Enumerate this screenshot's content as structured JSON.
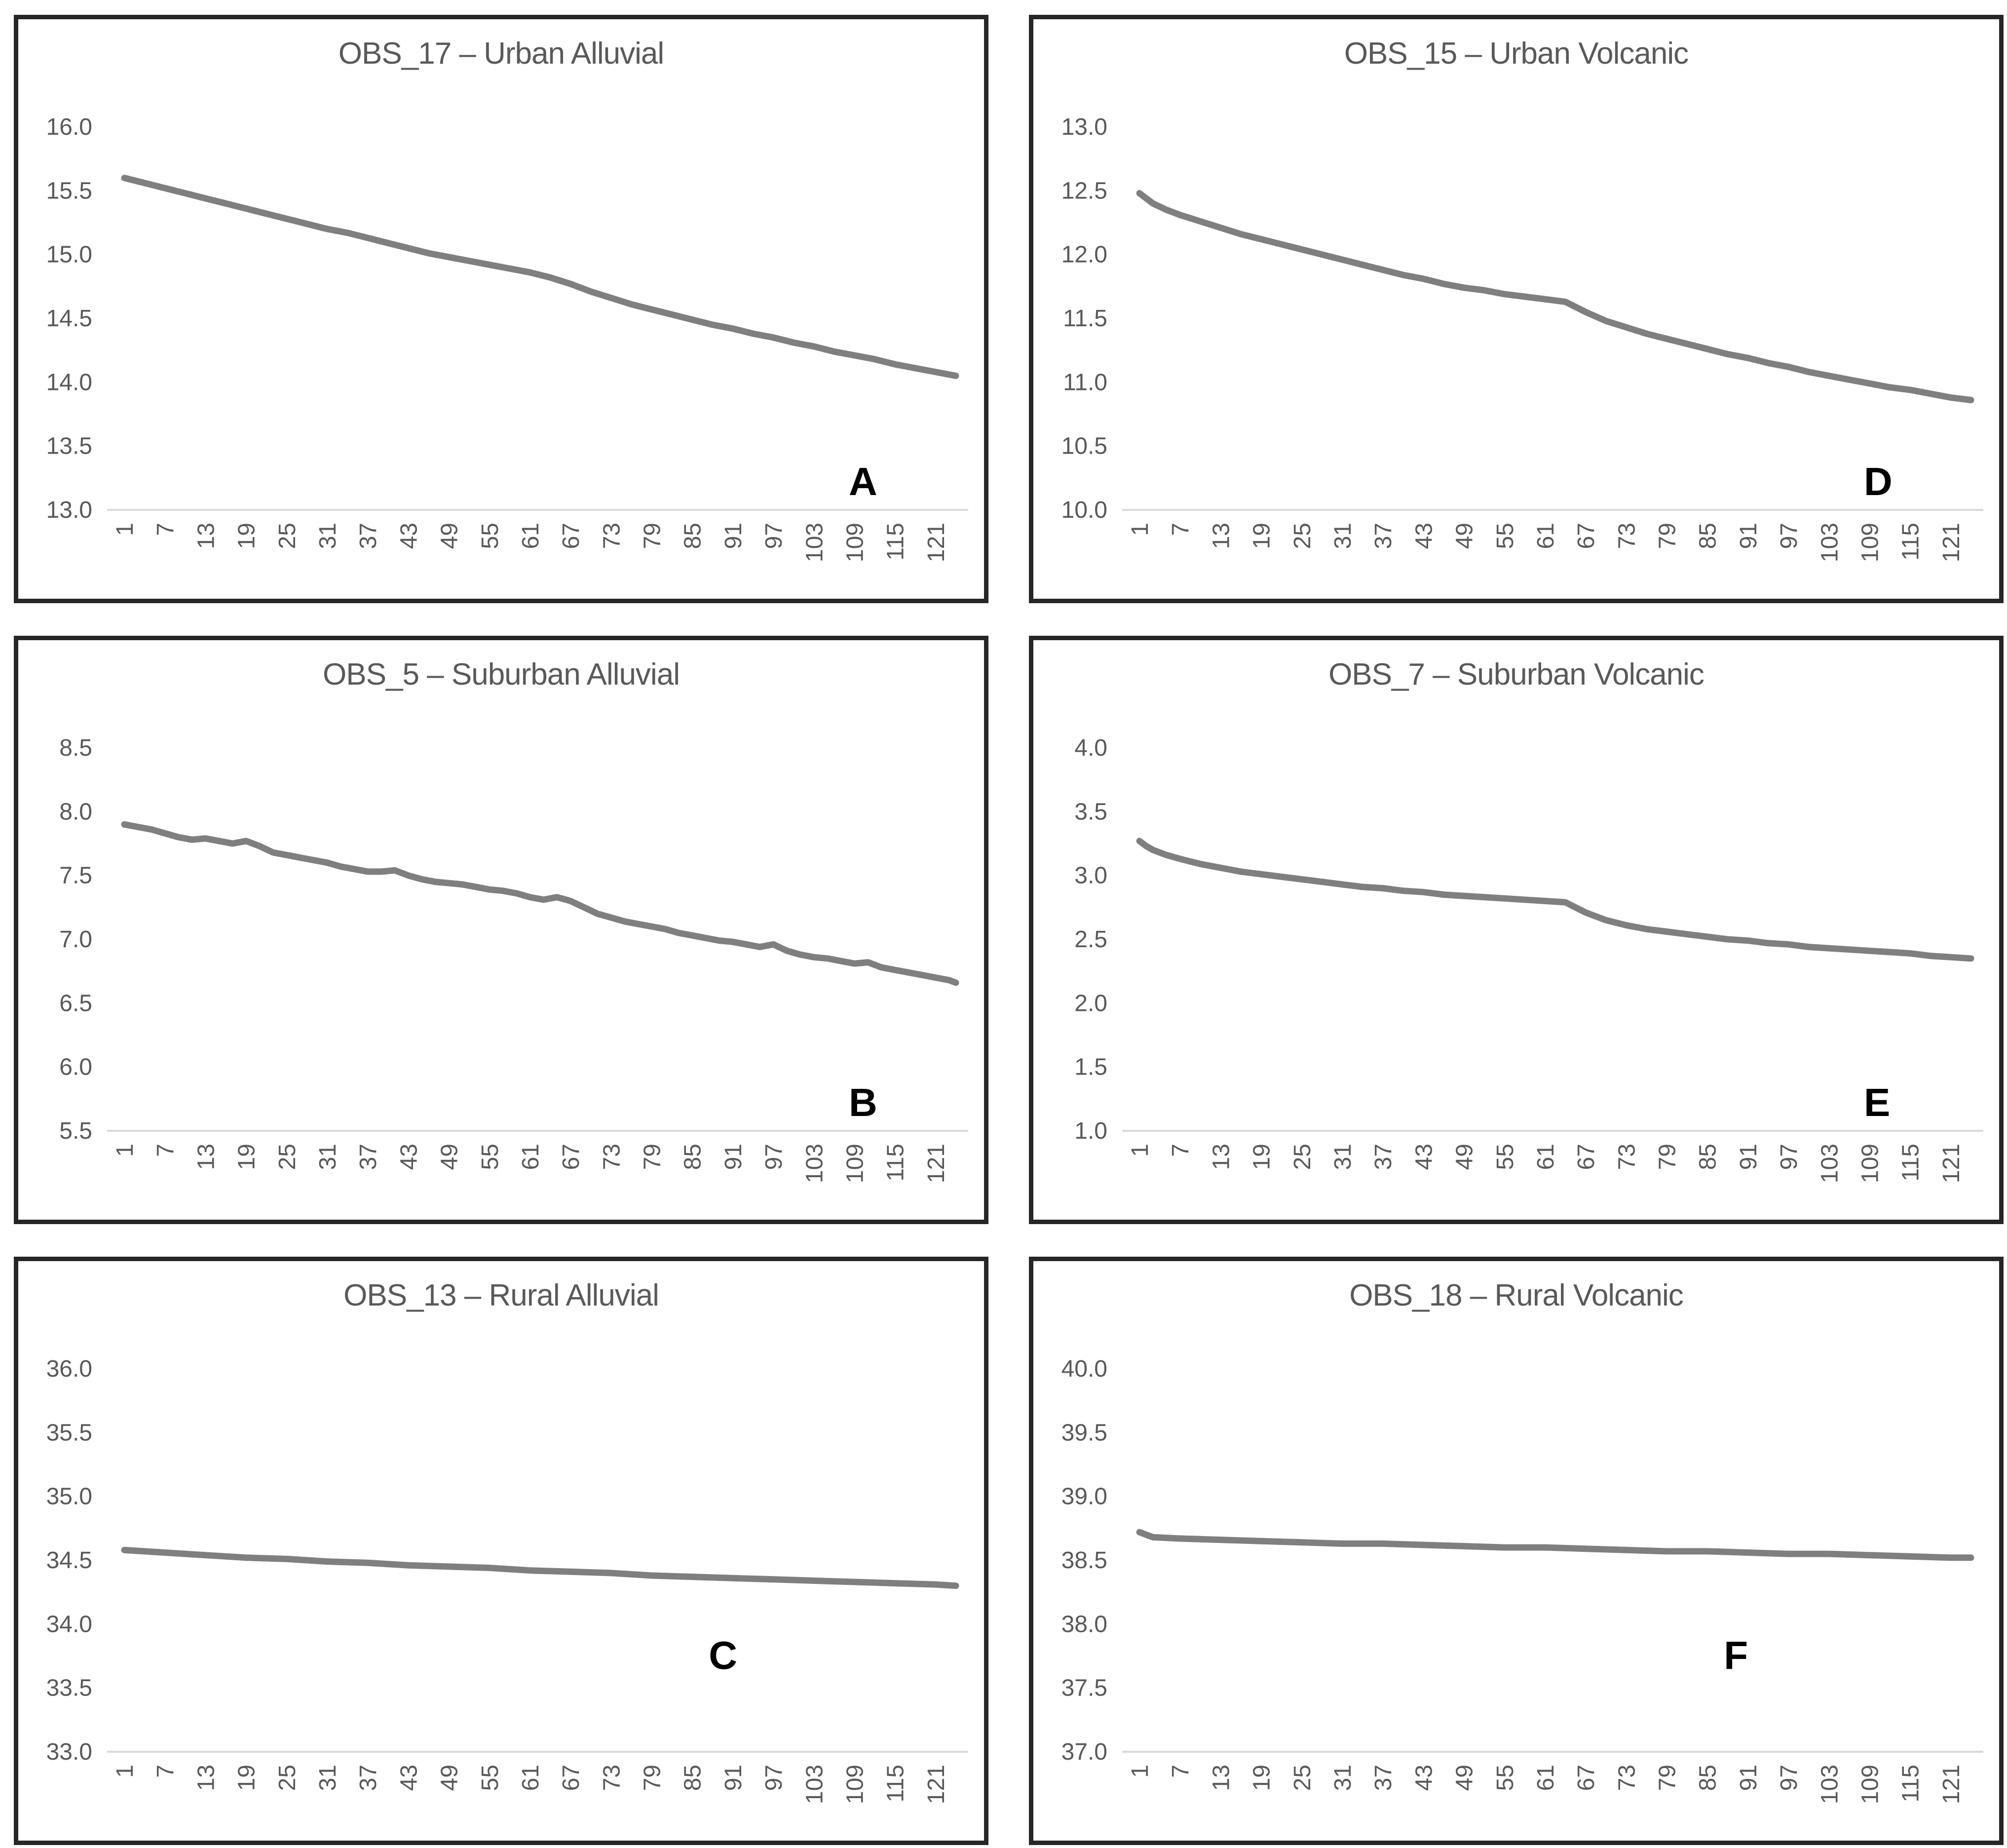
{
  "page": {
    "background": "#ffffff"
  },
  "colors": {
    "title_text": "#595959",
    "tick_text": "#595959",
    "series_line": "#7f7f7f",
    "axis_line": "#d9d9d9",
    "panel_border": "#262626",
    "letter_text": "#000000"
  },
  "x_axis": {
    "tick_labels": [
      "1",
      "7",
      "13",
      "19",
      "25",
      "31",
      "37",
      "43",
      "49",
      "55",
      "61",
      "67",
      "73",
      "79",
      "85",
      "91",
      "97",
      "103",
      "109",
      "115",
      "121"
    ],
    "tick_interval": 6,
    "n_points": 124,
    "label_rotation_deg": -90
  },
  "chart_data": [
    {
      "type": "line",
      "title": "OBS_17 – Urban Alluvial",
      "letter": "A",
      "ylim": [
        13.0,
        16.0
      ],
      "yticks": [
        "16.0",
        "15.5",
        "15.0",
        "14.5",
        "14.0",
        "13.5",
        "13.0"
      ],
      "grid": "off",
      "legend": "none",
      "points": [
        [
          1,
          15.6
        ],
        [
          4,
          15.56
        ],
        [
          7,
          15.52
        ],
        [
          10,
          15.48
        ],
        [
          13,
          15.44
        ],
        [
          16,
          15.4
        ],
        [
          19,
          15.36
        ],
        [
          22,
          15.32
        ],
        [
          25,
          15.28
        ],
        [
          28,
          15.24
        ],
        [
          31,
          15.2
        ],
        [
          34,
          15.17
        ],
        [
          37,
          15.13
        ],
        [
          40,
          15.09
        ],
        [
          43,
          15.05
        ],
        [
          46,
          15.01
        ],
        [
          49,
          14.98
        ],
        [
          52,
          14.95
        ],
        [
          55,
          14.92
        ],
        [
          58,
          14.89
        ],
        [
          61,
          14.86
        ],
        [
          64,
          14.82
        ],
        [
          67,
          14.77
        ],
        [
          70,
          14.71
        ],
        [
          73,
          14.66
        ],
        [
          76,
          14.61
        ],
        [
          79,
          14.57
        ],
        [
          82,
          14.53
        ],
        [
          85,
          14.49
        ],
        [
          88,
          14.45
        ],
        [
          91,
          14.42
        ],
        [
          94,
          14.38
        ],
        [
          97,
          14.35
        ],
        [
          100,
          14.31
        ],
        [
          103,
          14.28
        ],
        [
          106,
          14.24
        ],
        [
          109,
          14.21
        ],
        [
          112,
          14.18
        ],
        [
          115,
          14.14
        ],
        [
          118,
          14.11
        ],
        [
          121,
          14.08
        ],
        [
          124,
          14.05
        ]
      ]
    },
    {
      "type": "line",
      "title": "OBS_15 – Urban Volcanic",
      "letter": "D",
      "ylim": [
        10.0,
        13.0
      ],
      "yticks": [
        "13.0",
        "12.5",
        "12.0",
        "11.5",
        "11.0",
        "10.5",
        "10.0"
      ],
      "grid": "off",
      "legend": "none",
      "points": [
        [
          1,
          12.48
        ],
        [
          3,
          12.4
        ],
        [
          5,
          12.35
        ],
        [
          7,
          12.31
        ],
        [
          10,
          12.26
        ],
        [
          13,
          12.21
        ],
        [
          16,
          12.16
        ],
        [
          19,
          12.12
        ],
        [
          22,
          12.08
        ],
        [
          25,
          12.04
        ],
        [
          28,
          12.0
        ],
        [
          31,
          11.96
        ],
        [
          34,
          11.92
        ],
        [
          37,
          11.88
        ],
        [
          40,
          11.84
        ],
        [
          43,
          11.81
        ],
        [
          46,
          11.77
        ],
        [
          49,
          11.74
        ],
        [
          52,
          11.72
        ],
        [
          55,
          11.69
        ],
        [
          58,
          11.67
        ],
        [
          61,
          11.65
        ],
        [
          64,
          11.63
        ],
        [
          67,
          11.55
        ],
        [
          70,
          11.48
        ],
        [
          73,
          11.43
        ],
        [
          76,
          11.38
        ],
        [
          79,
          11.34
        ],
        [
          82,
          11.3
        ],
        [
          85,
          11.26
        ],
        [
          88,
          11.22
        ],
        [
          91,
          11.19
        ],
        [
          94,
          11.15
        ],
        [
          97,
          11.12
        ],
        [
          100,
          11.08
        ],
        [
          103,
          11.05
        ],
        [
          106,
          11.02
        ],
        [
          109,
          10.99
        ],
        [
          112,
          10.96
        ],
        [
          115,
          10.94
        ],
        [
          118,
          10.91
        ],
        [
          121,
          10.88
        ],
        [
          124,
          10.86
        ]
      ]
    },
    {
      "type": "line",
      "title": "OBS_5 – Suburban Alluvial",
      "letter": "B",
      "ylim": [
        5.5,
        8.5
      ],
      "yticks": [
        "8.5",
        "8.0",
        "7.5",
        "7.0",
        "6.5",
        "6.0",
        "5.5"
      ],
      "grid": "off",
      "legend": "none",
      "points": [
        [
          1,
          7.9
        ],
        [
          3,
          7.88
        ],
        [
          5,
          7.86
        ],
        [
          7,
          7.83
        ],
        [
          9,
          7.8
        ],
        [
          11,
          7.78
        ],
        [
          13,
          7.79
        ],
        [
          15,
          7.77
        ],
        [
          17,
          7.75
        ],
        [
          19,
          7.77
        ],
        [
          21,
          7.73
        ],
        [
          23,
          7.68
        ],
        [
          25,
          7.66
        ],
        [
          27,
          7.64
        ],
        [
          29,
          7.62
        ],
        [
          31,
          7.6
        ],
        [
          33,
          7.57
        ],
        [
          35,
          7.55
        ],
        [
          37,
          7.53
        ],
        [
          39,
          7.53
        ],
        [
          41,
          7.54
        ],
        [
          43,
          7.5
        ],
        [
          45,
          7.47
        ],
        [
          47,
          7.45
        ],
        [
          49,
          7.44
        ],
        [
          51,
          7.43
        ],
        [
          53,
          7.41
        ],
        [
          55,
          7.39
        ],
        [
          57,
          7.38
        ],
        [
          59,
          7.36
        ],
        [
          61,
          7.33
        ],
        [
          63,
          7.31
        ],
        [
          65,
          7.33
        ],
        [
          67,
          7.3
        ],
        [
          69,
          7.25
        ],
        [
          71,
          7.2
        ],
        [
          73,
          7.17
        ],
        [
          75,
          7.14
        ],
        [
          77,
          7.12
        ],
        [
          79,
          7.1
        ],
        [
          81,
          7.08
        ],
        [
          83,
          7.05
        ],
        [
          85,
          7.03
        ],
        [
          87,
          7.01
        ],
        [
          89,
          6.99
        ],
        [
          91,
          6.98
        ],
        [
          93,
          6.96
        ],
        [
          95,
          6.94
        ],
        [
          97,
          6.96
        ],
        [
          99,
          6.91
        ],
        [
          101,
          6.88
        ],
        [
          103,
          6.86
        ],
        [
          105,
          6.85
        ],
        [
          107,
          6.83
        ],
        [
          109,
          6.81
        ],
        [
          111,
          6.82
        ],
        [
          113,
          6.78
        ],
        [
          115,
          6.76
        ],
        [
          117,
          6.74
        ],
        [
          119,
          6.72
        ],
        [
          121,
          6.7
        ],
        [
          123,
          6.68
        ],
        [
          124,
          6.66
        ]
      ]
    },
    {
      "type": "line",
      "title": "OBS_7 – Suburban Volcanic",
      "letter": "E",
      "ylim": [
        1.0,
        4.0
      ],
      "yticks": [
        "4.0",
        "3.5",
        "3.0",
        "2.5",
        "2.0",
        "1.5",
        "1.0"
      ],
      "grid": "off",
      "legend": "none",
      "points": [
        [
          1,
          3.27
        ],
        [
          2,
          3.23
        ],
        [
          3,
          3.2
        ],
        [
          5,
          3.16
        ],
        [
          7,
          3.13
        ],
        [
          10,
          3.09
        ],
        [
          13,
          3.06
        ],
        [
          16,
          3.03
        ],
        [
          19,
          3.01
        ],
        [
          22,
          2.99
        ],
        [
          25,
          2.97
        ],
        [
          28,
          2.95
        ],
        [
          31,
          2.93
        ],
        [
          34,
          2.91
        ],
        [
          37,
          2.9
        ],
        [
          40,
          2.88
        ],
        [
          43,
          2.87
        ],
        [
          46,
          2.85
        ],
        [
          49,
          2.84
        ],
        [
          52,
          2.83
        ],
        [
          55,
          2.82
        ],
        [
          58,
          2.81
        ],
        [
          61,
          2.8
        ],
        [
          64,
          2.79
        ],
        [
          67,
          2.71
        ],
        [
          70,
          2.65
        ],
        [
          73,
          2.61
        ],
        [
          76,
          2.58
        ],
        [
          79,
          2.56
        ],
        [
          82,
          2.54
        ],
        [
          85,
          2.52
        ],
        [
          88,
          2.5
        ],
        [
          91,
          2.49
        ],
        [
          94,
          2.47
        ],
        [
          97,
          2.46
        ],
        [
          100,
          2.44
        ],
        [
          103,
          2.43
        ],
        [
          106,
          2.42
        ],
        [
          109,
          2.41
        ],
        [
          112,
          2.4
        ],
        [
          115,
          2.39
        ],
        [
          118,
          2.37
        ],
        [
          121,
          2.36
        ],
        [
          124,
          2.35
        ]
      ]
    },
    {
      "type": "line",
      "title": "OBS_13 – Rural Alluvial",
      "letter": "C",
      "ylim": [
        33.0,
        36.0
      ],
      "yticks": [
        "36.0",
        "35.5",
        "35.0",
        "34.5",
        "34.0",
        "33.5",
        "33.0"
      ],
      "grid": "off",
      "legend": "none",
      "points": [
        [
          1,
          34.58
        ],
        [
          7,
          34.56
        ],
        [
          13,
          34.54
        ],
        [
          19,
          34.52
        ],
        [
          25,
          34.51
        ],
        [
          31,
          34.49
        ],
        [
          37,
          34.48
        ],
        [
          43,
          34.46
        ],
        [
          49,
          34.45
        ],
        [
          55,
          34.44
        ],
        [
          61,
          34.42
        ],
        [
          67,
          34.41
        ],
        [
          73,
          34.4
        ],
        [
          79,
          34.38
        ],
        [
          85,
          34.37
        ],
        [
          91,
          34.36
        ],
        [
          97,
          34.35
        ],
        [
          103,
          34.34
        ],
        [
          109,
          34.33
        ],
        [
          115,
          34.32
        ],
        [
          121,
          34.31
        ],
        [
          124,
          34.3
        ]
      ]
    },
    {
      "type": "line",
      "title": "OBS_18 – Rural Volcanic",
      "letter": "F",
      "ylim": [
        37.0,
        40.0
      ],
      "yticks": [
        "40.0",
        "39.5",
        "39.0",
        "38.5",
        "38.0",
        "37.5",
        "37.0"
      ],
      "grid": "off",
      "legend": "none",
      "points": [
        [
          1,
          38.72
        ],
        [
          2,
          38.7
        ],
        [
          3,
          38.68
        ],
        [
          7,
          38.67
        ],
        [
          13,
          38.66
        ],
        [
          19,
          38.65
        ],
        [
          25,
          38.64
        ],
        [
          31,
          38.63
        ],
        [
          37,
          38.63
        ],
        [
          43,
          38.62
        ],
        [
          49,
          38.61
        ],
        [
          55,
          38.6
        ],
        [
          61,
          38.6
        ],
        [
          67,
          38.59
        ],
        [
          73,
          38.58
        ],
        [
          79,
          38.57
        ],
        [
          85,
          38.57
        ],
        [
          91,
          38.56
        ],
        [
          97,
          38.55
        ],
        [
          103,
          38.55
        ],
        [
          109,
          38.54
        ],
        [
          115,
          38.53
        ],
        [
          121,
          38.52
        ],
        [
          124,
          38.52
        ]
      ]
    }
  ]
}
